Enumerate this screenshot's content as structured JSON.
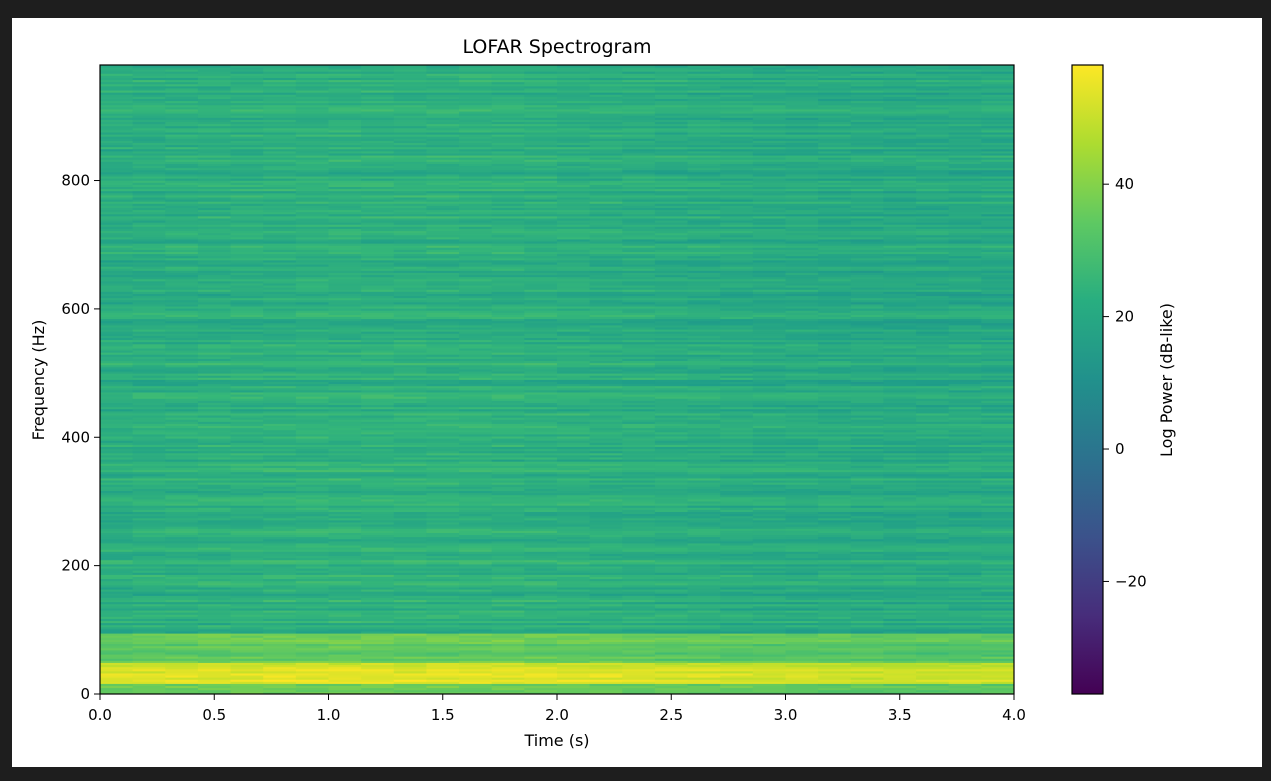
{
  "chart_data": {
    "type": "heatmap",
    "title": "LOFAR Spectrogram",
    "xlabel": "Time (s)",
    "ylabel": "Frequency (Hz)",
    "xlim": [
      0.0,
      4.0
    ],
    "ylim": [
      0,
      980
    ],
    "xticks": [
      0.0,
      0.5,
      1.0,
      1.5,
      2.0,
      2.5,
      3.0,
      3.5,
      4.0
    ],
    "xtick_labels": [
      "0.0",
      "0.5",
      "1.0",
      "1.5",
      "2.0",
      "2.5",
      "3.0",
      "3.5",
      "4.0"
    ],
    "yticks": [
      0,
      200,
      400,
      600,
      800
    ],
    "ytick_labels": [
      "0",
      "200",
      "400",
      "600",
      "800"
    ],
    "colormap": "viridis",
    "grid": false,
    "colorbar": {
      "label": "Log Power (dB-like)",
      "range": [
        -37,
        58
      ],
      "ticks": [
        -20,
        0,
        20,
        40
      ],
      "tick_labels": [
        "−20",
        "0",
        "20",
        "40"
      ]
    },
    "features": [
      {
        "description": "strong low-frequency band",
        "freq_range_hz": [
          15,
          50
        ],
        "level_db": 55
      },
      {
        "description": "broadband background",
        "freq_range_hz": [
          60,
          980
        ],
        "level_db": 22
      }
    ]
  }
}
